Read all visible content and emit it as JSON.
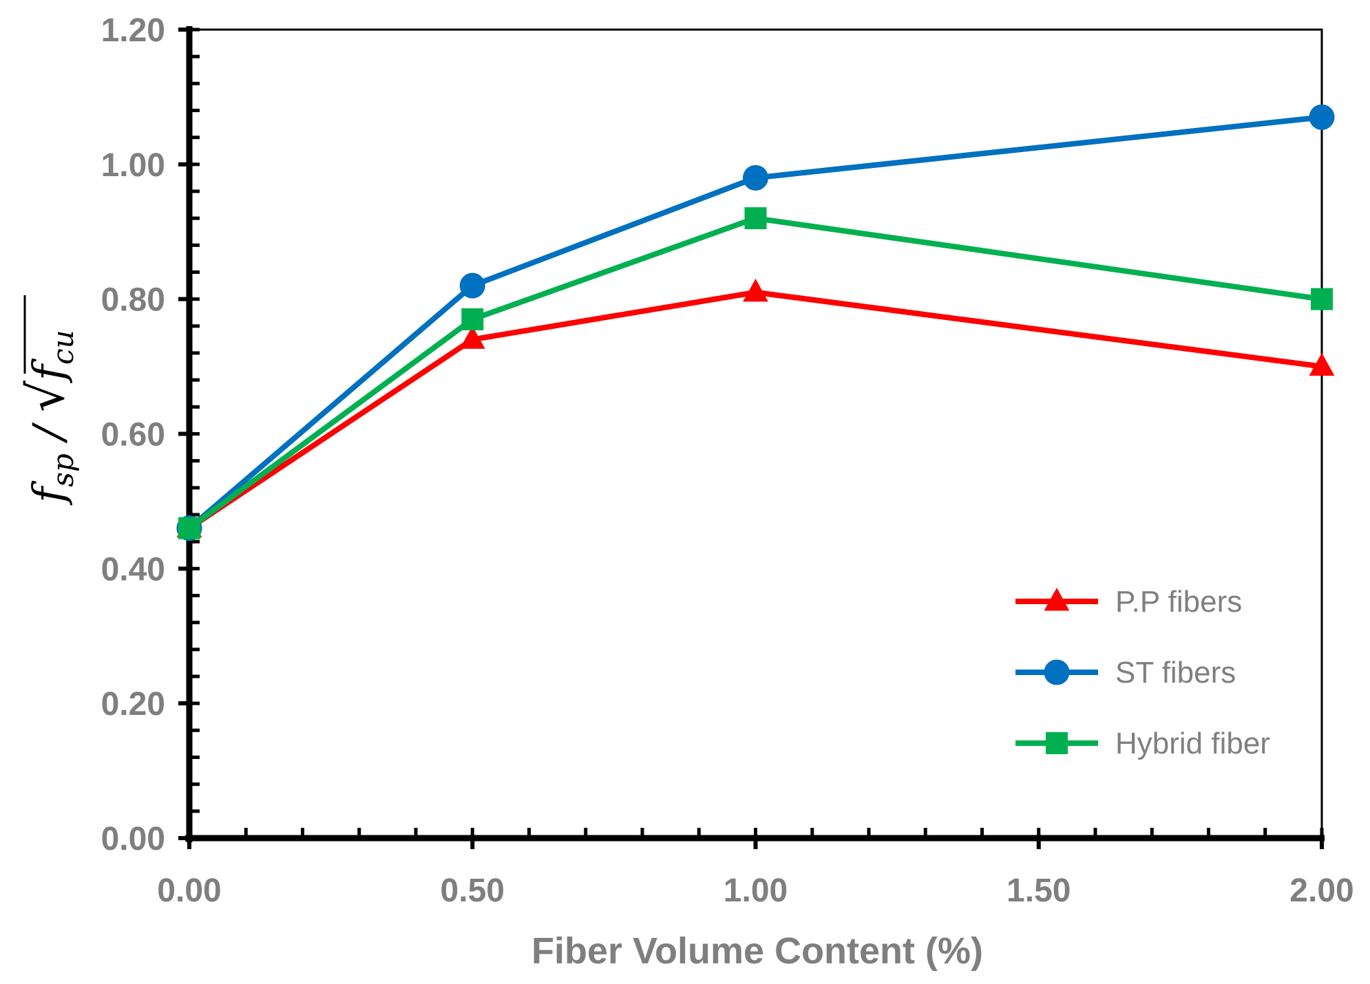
{
  "chart_data": {
    "type": "line",
    "title": "",
    "xlabel": "Fiber Volume Content (%)",
    "ylabel": {
      "numerator": "f",
      "numerator_sub": "sp",
      "separator": " / ",
      "root_symbol": "√",
      "denominator": "f",
      "denominator_sub": "cu"
    },
    "x_tick_labels": [
      "0.00",
      "0.50",
      "1.00",
      "1.50",
      "2.00"
    ],
    "y_tick_labels": [
      "0.00",
      "0.20",
      "0.40",
      "0.60",
      "0.80",
      "1.00",
      "1.20"
    ],
    "x_tick_values": [
      0,
      0.5,
      1.0,
      1.5,
      2.0
    ],
    "y_tick_values": [
      0,
      0.2,
      0.4,
      0.6,
      0.8,
      1.0,
      1.2
    ],
    "ylim": [
      0,
      1.2
    ],
    "grid": false,
    "legend_position": "bottom-right",
    "categories": [
      "0.00",
      "0.50",
      "1.00",
      "2.00"
    ],
    "x": [
      0,
      0.5,
      1.0,
      2.0
    ],
    "series": [
      {
        "name": "P.P fibers",
        "color": "#ff0000",
        "marker": "triangle",
        "values": [
          0.46,
          0.74,
          0.81,
          0.7
        ]
      },
      {
        "name": "ST fibers",
        "color": "#0070c0",
        "marker": "circle",
        "values": [
          0.46,
          0.82,
          0.98,
          1.07
        ]
      },
      {
        "name": "Hybrid fiber",
        "color": "#00b050",
        "marker": "square",
        "values": [
          0.46,
          0.77,
          0.92,
          0.8
        ]
      }
    ]
  }
}
